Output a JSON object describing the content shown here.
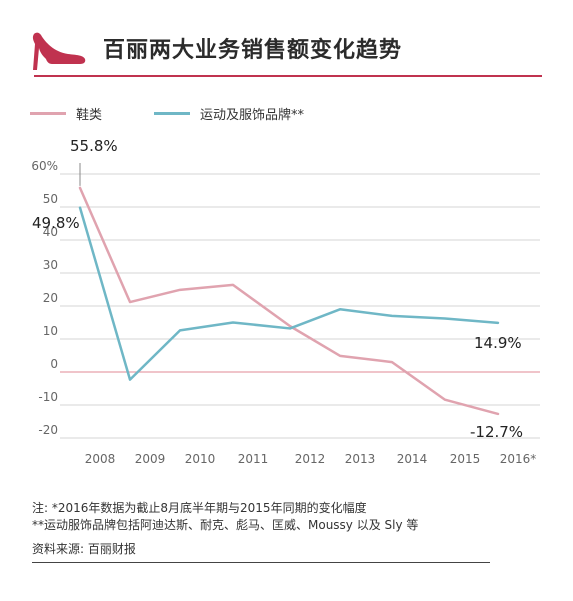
{
  "header": {
    "title": "百丽两大业务销售额变化趋势",
    "accent_color": "#c0324f",
    "icon": "high-heel-shoe-icon"
  },
  "chart_data": {
    "type": "line",
    "title": "百丽两大业务销售额变化趋势",
    "categories": [
      "2008",
      "2009",
      "2010",
      "2011",
      "2012",
      "2013",
      "2014",
      "2015",
      "2016*"
    ],
    "series": [
      {
        "name": "鞋类",
        "color": "#e0a3af",
        "values": [
          55.8,
          21.2,
          24.9,
          26.4,
          13.9,
          4.9,
          3.0,
          -8.4,
          -12.7
        ]
      },
      {
        "name": "运动及服饰品牌**",
        "color": "#6fb7c6",
        "values": [
          49.8,
          -2.3,
          12.6,
          15.0,
          13.2,
          19.0,
          17.0,
          16.2,
          14.9
        ]
      }
    ],
    "yticks": [
      "60%",
      "50",
      "40",
      "30",
      "20",
      "10",
      "0",
      "-10",
      "-20"
    ],
    "ylim": [
      -20,
      60
    ],
    "grid": "horizontal",
    "zero_line_color": "#e8a0ab",
    "legend_position": "top-left",
    "annotations": [
      {
        "text": "55.8%",
        "category": "2008",
        "series": "鞋类"
      },
      {
        "text": "49.8%",
        "category": "2008",
        "series": "运动及服饰品牌**"
      },
      {
        "text": "14.9%",
        "category": "2016*",
        "series": "运动及服饰品牌**"
      },
      {
        "text": "-12.7%",
        "category": "2016*",
        "series": "鞋类"
      }
    ]
  },
  "notes": [
    "注:  *2016年数据为截止8月底半年期与2015年同期的变化幅度",
    "**运动服饰品牌包括阿迪达斯、耐克、彪马、匡威、Moussy 以及 Sly 等"
  ],
  "source": "资料来源: 百丽财报"
}
